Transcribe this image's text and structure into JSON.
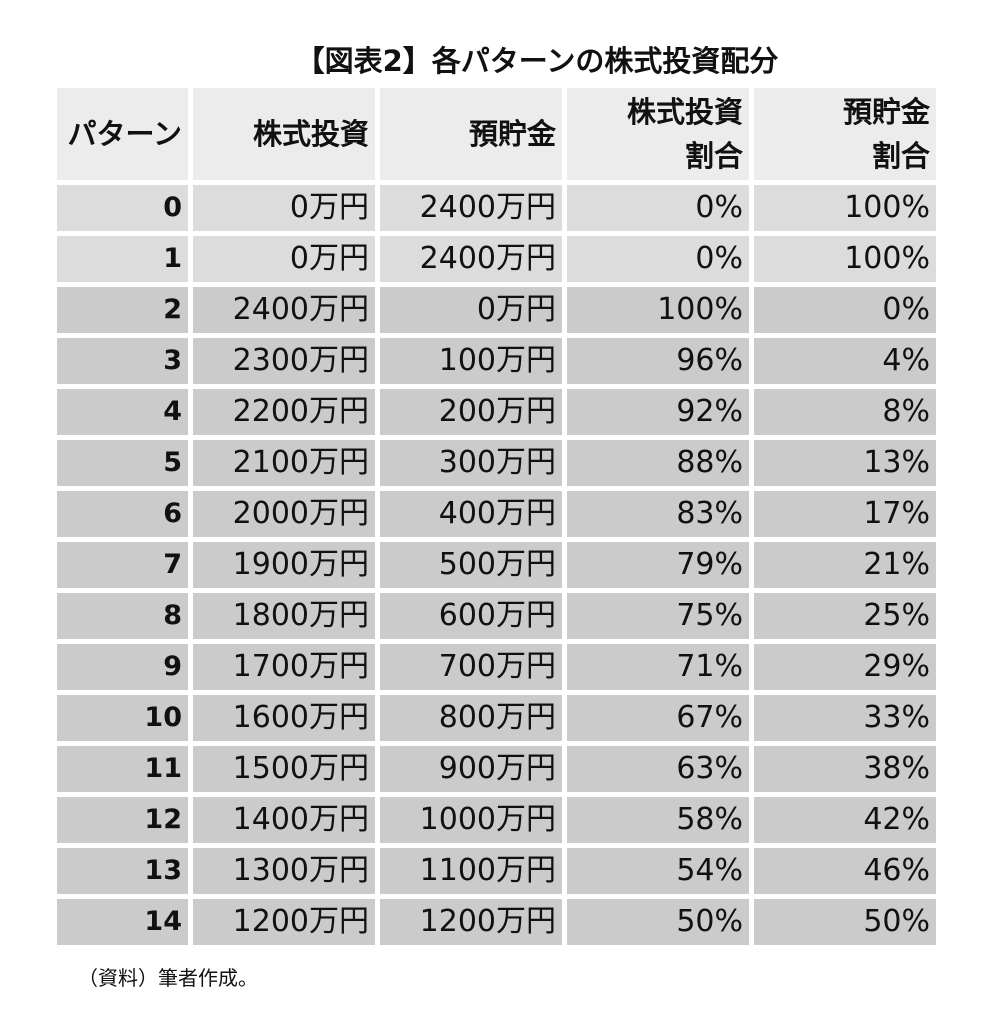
{
  "title": "【図表2】各パターンの株式投資配分",
  "table": {
    "headers": [
      "パターン",
      "株式投資",
      "預貯金",
      "株式投資\n割合",
      "預貯金\n割合"
    ],
    "header_lines": [
      [
        "パターン"
      ],
      [
        "株式投資"
      ],
      [
        "預貯金"
      ],
      [
        "株式投資",
        "割合"
      ],
      [
        "預貯金",
        "割合"
      ]
    ],
    "rows": [
      [
        "0",
        "0万円",
        "2400万円",
        "0%",
        "100%"
      ],
      [
        "1",
        "0万円",
        "2400万円",
        "0%",
        "100%"
      ],
      [
        "2",
        "2400万円",
        "0万円",
        "100%",
        "0%"
      ],
      [
        "3",
        "2300万円",
        "100万円",
        "96%",
        "4%"
      ],
      [
        "4",
        "2200万円",
        "200万円",
        "92%",
        "8%"
      ],
      [
        "5",
        "2100万円",
        "300万円",
        "88%",
        "13%"
      ],
      [
        "6",
        "2000万円",
        "400万円",
        "83%",
        "17%"
      ],
      [
        "7",
        "1900万円",
        "500万円",
        "79%",
        "21%"
      ],
      [
        "8",
        "1800万円",
        "600万円",
        "75%",
        "25%"
      ],
      [
        "9",
        "1700万円",
        "700万円",
        "71%",
        "29%"
      ],
      [
        "10",
        "1600万円",
        "800万円",
        "67%",
        "33%"
      ],
      [
        "11",
        "1500万円",
        "900万円",
        "63%",
        "38%"
      ],
      [
        "12",
        "1400万円",
        "1000万円",
        "58%",
        "42%"
      ],
      [
        "13",
        "1300万円",
        "1100万円",
        "54%",
        "46%"
      ],
      [
        "14",
        "1200万円",
        "1200万円",
        "50%",
        "50%"
      ]
    ]
  },
  "colors": {
    "header_bg": "#ececec",
    "row_light_bg": "#dcdcdc",
    "row_dark_bg": "#cbcbcb"
  },
  "source_note": "（資料）筆者作成。"
}
